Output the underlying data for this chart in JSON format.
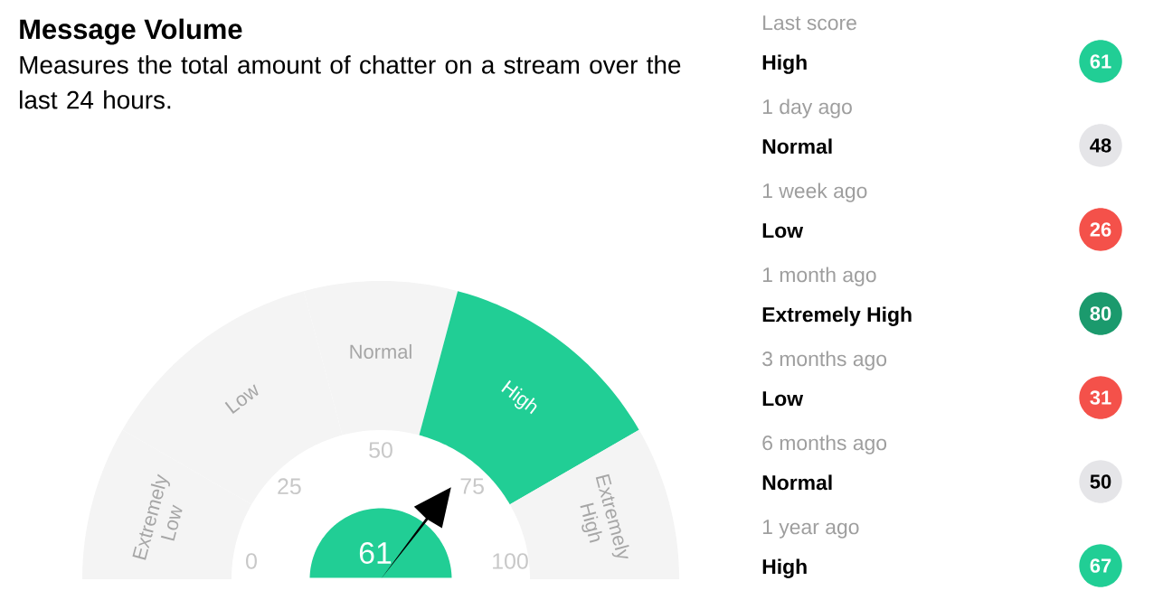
{
  "chart_data": [
    {
      "type": "donut",
      "title": "Message Volume",
      "subtitle": "Measures the total amount of chatter on a stream over the last 24 hours.",
      "categories": [
        "Extremely Low",
        "Low",
        "Normal",
        "High",
        "Extremely High"
      ],
      "values": [
        16.7,
        25,
        16.6,
        25,
        16.7
      ],
      "colors": [
        "#f4f4f4",
        "#f4f4f4",
        "#f4f4f4",
        "#21ce95",
        "#f4f4f4"
      ],
      "needle": "High",
      "annotations": [
        "61",
        "0",
        "25",
        "50",
        "75",
        "100"
      ]
    },
    {
      "type": "other",
      "categories": [
        "Last score",
        "1 day ago",
        "1 week ago",
        "1 month ago",
        "3 months ago",
        "6 months ago",
        "1 year ago"
      ],
      "values": [
        61,
        48,
        26,
        80,
        31,
        50,
        67
      ],
      "colors": [
        "#21ce95",
        "#e5e5e8",
        "#f4514a",
        "#1b9a6d",
        "#f4514a",
        "#e5e5e8",
        "#21ce95"
      ],
      "annotations": [
        "High",
        "Normal",
        "Low",
        "Extremely High",
        "Low",
        "Normal",
        "High"
      ],
      "data_labels": true
    }
  ]
}
